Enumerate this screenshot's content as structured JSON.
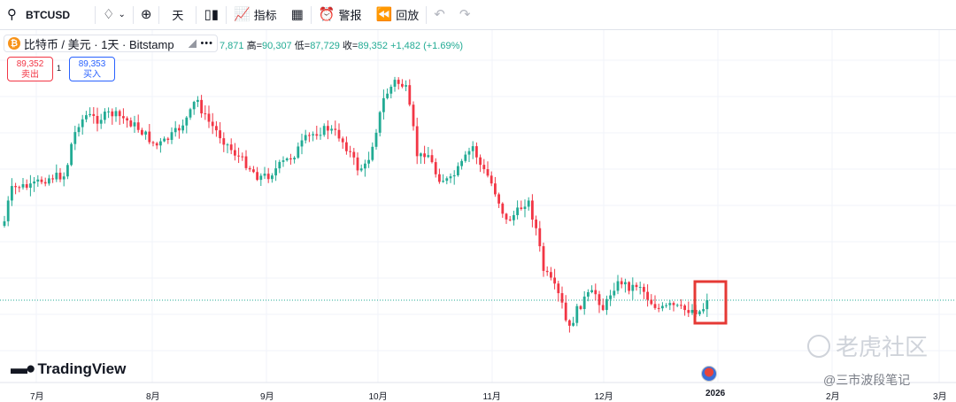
{
  "toolbar": {
    "symbol": "BTCUSD",
    "interval": "天",
    "indicators": "指标",
    "alert": "警报",
    "replay": "回放"
  },
  "legend": {
    "coin_letter": "₿",
    "title": "比特币 / 美元 · 1天 · Bitstamp",
    "dots": "•••",
    "ohlc_open_partial": "7,871",
    "ohlc_high_label": "高=",
    "ohlc_high": "90,307",
    "ohlc_low_label": "低=",
    "ohlc_low": "87,729",
    "ohlc_close_label": "收=",
    "ohlc_close": "89,352",
    "ohlc_change": "+1,482 (+1.69%)"
  },
  "trade": {
    "sell_price": "89,352",
    "sell_label": "卖出",
    "spread": "1",
    "buy_price": "89,353",
    "buy_label": "买入"
  },
  "brand": {
    "name": "TradingView"
  },
  "watermark": {
    "main": "老虎社区",
    "sub": "@三市波段笔记"
  },
  "chart_data": {
    "type": "candlestick",
    "up_color": "#22ab94",
    "down_color": "#f23645",
    "x_axis_labels": [
      "7月",
      "8月",
      "9月",
      "10月",
      "11月",
      "12月",
      "2026",
      "2月",
      "3月"
    ],
    "ylim": [
      80000,
      128000
    ],
    "last_price": 89352,
    "highlight_color": "#e53935"
  }
}
